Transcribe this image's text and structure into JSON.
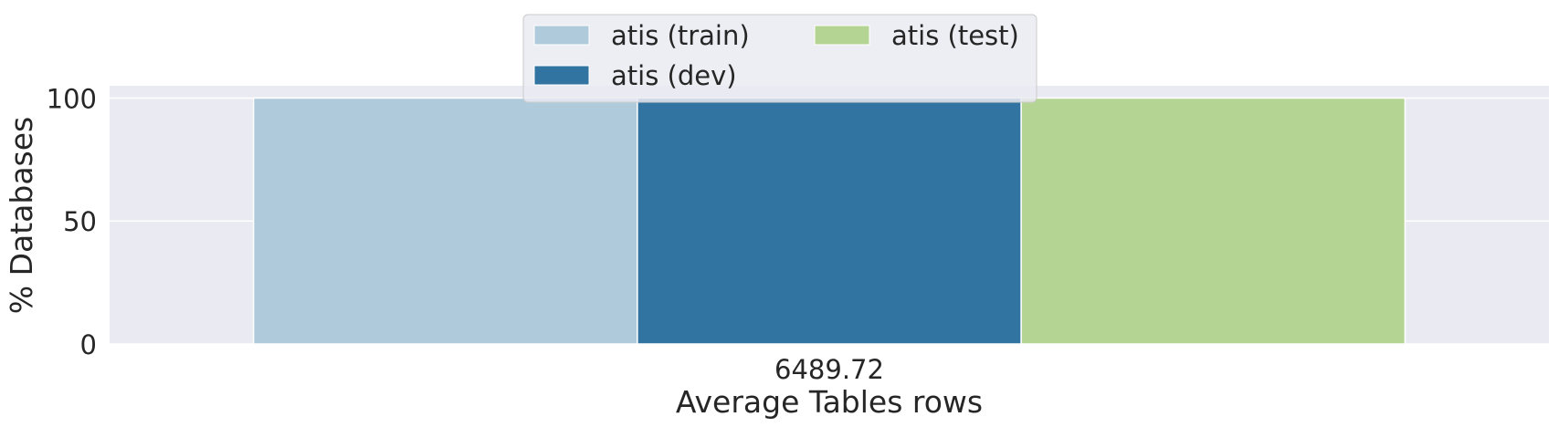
{
  "chart_data": {
    "type": "bar",
    "categories": [
      "6489.72"
    ],
    "series": [
      {
        "name": "atis (train)",
        "values": [
          100
        ],
        "color": "#afcbdb"
      },
      {
        "name": "atis (dev)",
        "values": [
          100
        ],
        "color": "#3274a1"
      },
      {
        "name": "atis (test)",
        "values": [
          100
        ],
        "color": "#b4d494"
      }
    ],
    "xlabel": "Average Tables rows",
    "ylabel": "% Databases",
    "ylim": [
      0,
      105
    ],
    "yticks": [
      0,
      50,
      100
    ],
    "grid": true,
    "legend_position": "top-center",
    "legend_columns": 2,
    "background": "#eaeaf2"
  }
}
